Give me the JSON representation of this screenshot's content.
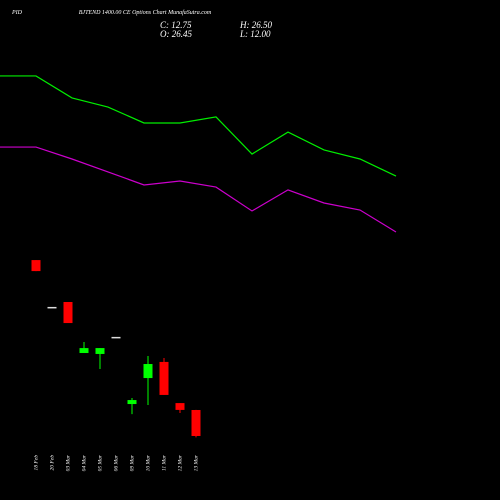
{
  "chart_data": [
    {
      "type": "candlestick",
      "symbol": "PID",
      "title": "BJTEND 1400.00 CE Options Chart MunafaSutra.com",
      "annotations": [
        "C: 12.75",
        "H: 26.50",
        "O: 26.45",
        "L: 12.00"
      ],
      "categories": [
        "18 Feb",
        "20 Feb",
        "03 Mar",
        "04 Mar",
        "05 Mar",
        "06 Mar",
        "09 Mar",
        "10 Mar",
        "11 Mar",
        "12 Mar",
        "13 Mar"
      ],
      "open": [
        105.5,
        80.8,
        83.4,
        56.5,
        56.0,
        65.0,
        29.6,
        43.3,
        51.8,
        30.1,
        26.45
      ],
      "high": [
        105.5,
        80.8,
        83.4,
        62.3,
        59.1,
        65.0,
        32.8,
        54.9,
        53.9,
        30.1,
        26.5
      ],
      "low": [
        99.7,
        80.8,
        72.3,
        56.5,
        48.1,
        65.0,
        24.3,
        29.1,
        34.4,
        24.9,
        12.0
      ],
      "close": [
        99.7,
        80.8,
        72.3,
        59.1,
        59.1,
        65.0,
        31.7,
        50.7,
        34.4,
        26.5,
        12.75
      ],
      "up_color": "#00ff00",
      "down_color": "#ff0000",
      "flat_color": "#dddddd",
      "ylim": [
        8,
        240
      ]
    },
    {
      "type": "line",
      "categories": [
        null,
        null,
        null,
        null,
        null,
        null,
        null,
        null,
        null,
        null,
        null,
        null
      ],
      "series": [
        {
          "color": "#00ee00",
          "values": [
            202.6,
            202.6,
            191.0,
            186.2,
            177.8,
            177.8,
            181.0,
            161.4,
            173.0,
            163.6,
            158.8,
            149.8
          ]
        },
        {
          "color": "#cc00cc",
          "values": [
            165.1,
            165.1,
            158.8,
            152.0,
            145.1,
            147.2,
            144.0,
            131.4,
            142.5,
            135.6,
            131.9,
            120.3
          ]
        }
      ],
      "ylim": [
        8,
        240
      ]
    }
  ]
}
